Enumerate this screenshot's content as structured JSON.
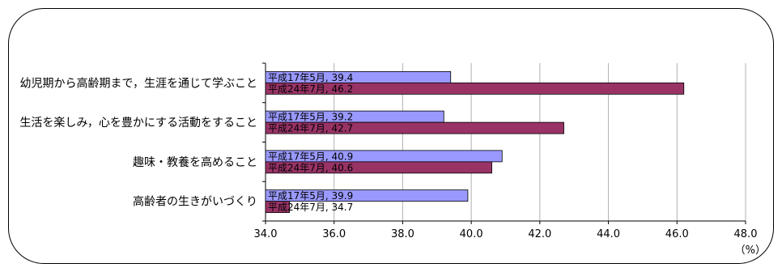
{
  "chart_data": {
    "type": "bar",
    "orientation": "horizontal",
    "categories": [
      "幼児期から高齢期まで，生涯を通じて学ぶこと",
      "生活を楽しみ，心を豊かにする活動をすること",
      "趣味・教養を高めること",
      "高齢者の生きがいづくり"
    ],
    "series": [
      {
        "name": "平成17年5月",
        "values": [
          39.4,
          39.2,
          40.9,
          39.9
        ],
        "color": "#9999ff"
      },
      {
        "name": "平成24年7月",
        "values": [
          46.2,
          42.7,
          40.6,
          34.7
        ],
        "color": "#993366"
      }
    ],
    "xlim": [
      34.0,
      48.0
    ],
    "xticks": [
      "34.0",
      "36.0",
      "38.0",
      "40.0",
      "42.0",
      "44.0",
      "46.0",
      "48.0"
    ],
    "unit_label": "（%）",
    "grid": "vertical",
    "bar_label_format": "{series}, {value}"
  }
}
